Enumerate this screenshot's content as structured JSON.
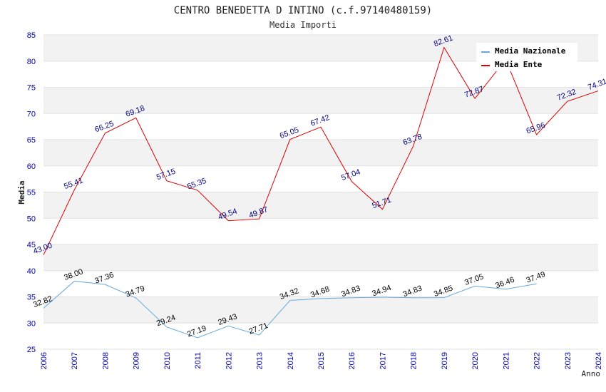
{
  "chart_data": {
    "type": "line",
    "title": "CENTRO BENEDETTA D INTINO (c.f.97140480159)",
    "subtitle": "Media Importi",
    "xlabel": "Anno",
    "ylabel": "Media",
    "ylim": [
      25,
      85
    ],
    "yticks": [
      "25",
      "30",
      "35",
      "40",
      "45",
      "50",
      "55",
      "60",
      "65",
      "70",
      "75",
      "80",
      "85"
    ],
    "x": [
      "2006",
      "2007",
      "2008",
      "2009",
      "2010",
      "2011",
      "2012",
      "2013",
      "2014",
      "2015",
      "2016",
      "2017",
      "2018",
      "2019",
      "2020",
      "2021",
      "2022",
      "2023",
      "2024"
    ],
    "grid": true,
    "legend_position": "top-right",
    "series": [
      {
        "name": "Media Nazionale",
        "color": "#66aadd",
        "values": [
          32.82,
          38.0,
          37.36,
          34.79,
          29.24,
          27.19,
          29.43,
          27.71,
          34.32,
          34.68,
          34.83,
          34.94,
          34.83,
          34.85,
          37.05,
          36.46,
          37.49,
          null,
          null
        ],
        "labels": [
          "32.82",
          "38.00",
          "37.36",
          "34.79",
          "29.24",
          "27.19",
          "29.43",
          "27.71",
          "34.32",
          "34.68",
          "34.83",
          "34.94",
          "34.83",
          "34.85",
          "37.05",
          "36.46",
          "37.49",
          "",
          ""
        ]
      },
      {
        "name": "Media Ente",
        "color": "#dd0000",
        "values": [
          43.0,
          55.41,
          66.25,
          69.18,
          57.15,
          55.35,
          49.54,
          49.87,
          65.05,
          67.42,
          57.04,
          51.71,
          63.78,
          82.61,
          72.87,
          80.3,
          65.96,
          72.32,
          74.31
        ],
        "labels": [
          "43.00",
          "55.41",
          "66.25",
          "69.18",
          "57.15",
          "55.35",
          "49.54",
          "49.87",
          "65.05",
          "67.42",
          "57.04",
          "51.71",
          "63.78",
          "82.61",
          "72.87",
          "",
          "65.96",
          "72.32",
          "74.31"
        ]
      }
    ]
  }
}
